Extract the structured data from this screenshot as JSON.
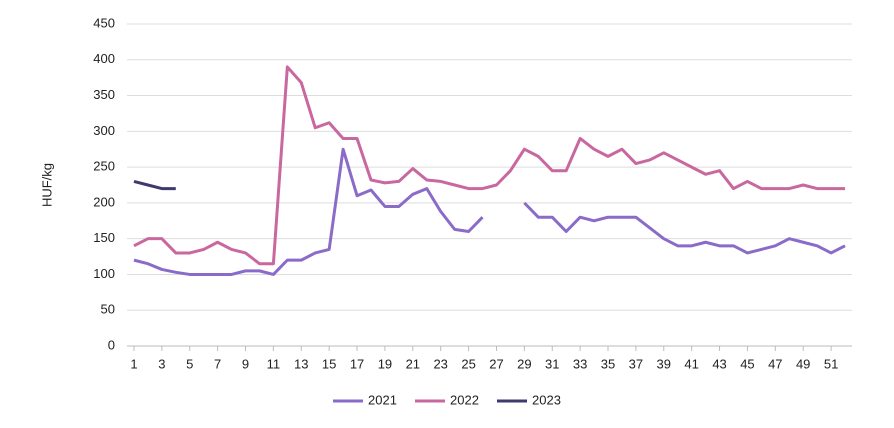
{
  "chart_data": {
    "type": "line",
    "y_label": "HUF/kg",
    "x": [
      1,
      2,
      3,
      4,
      5,
      6,
      7,
      8,
      9,
      10,
      11,
      12,
      13,
      14,
      15,
      16,
      17,
      18,
      19,
      20,
      21,
      22,
      23,
      24,
      25,
      26,
      27,
      28,
      29,
      30,
      31,
      32,
      33,
      34,
      35,
      36,
      37,
      38,
      39,
      40,
      41,
      42,
      43,
      44,
      45,
      46,
      47,
      48,
      49,
      50,
      51,
      52
    ],
    "series": [
      {
        "name": "2021",
        "color": "#8b6bc8",
        "values": [
          120,
          115,
          107,
          103,
          100,
          100,
          100,
          100,
          105,
          105,
          100,
          120,
          120,
          130,
          135,
          275,
          210,
          218,
          195,
          195,
          212,
          220,
          188,
          163,
          160,
          180,
          null,
          null,
          200,
          180,
          180,
          160,
          180,
          175,
          180,
          180,
          180,
          165,
          150,
          140,
          140,
          145,
          140,
          140,
          130,
          135,
          140,
          150,
          145,
          140,
          130,
          140
        ]
      },
      {
        "name": "2022",
        "color": "#c9679f",
        "values": [
          140,
          150,
          150,
          130,
          130,
          135,
          145,
          135,
          130,
          115,
          115,
          390,
          368,
          305,
          312,
          290,
          290,
          232,
          228,
          230,
          248,
          232,
          230,
          225,
          220,
          220,
          225,
          245,
          275,
          265,
          245,
          245,
          290,
          275,
          265,
          275,
          255,
          260,
          270,
          260,
          250,
          240,
          245,
          220,
          230,
          220,
          220,
          220,
          225,
          220,
          220,
          220
        ]
      },
      {
        "name": "2023",
        "color": "#3f3a6e",
        "values": [
          230,
          225,
          220,
          220,
          null,
          null,
          null,
          null,
          null,
          null,
          null,
          null,
          null,
          null,
          null,
          null,
          null,
          null,
          null,
          null,
          null,
          null,
          null,
          null,
          null,
          null,
          null,
          null,
          null,
          null,
          null,
          null,
          null,
          null,
          null,
          null,
          null,
          null,
          null,
          null,
          null,
          null,
          null,
          null,
          null,
          null,
          null,
          null,
          null,
          null,
          null,
          null
        ]
      }
    ],
    "xlim": [
      0.5,
      52.5
    ],
    "xticks": [
      1,
      3,
      5,
      7,
      9,
      11,
      13,
      15,
      17,
      19,
      21,
      23,
      25,
      27,
      29,
      31,
      33,
      35,
      37,
      39,
      41,
      43,
      45,
      47,
      49,
      51
    ],
    "ylim": [
      0,
      450
    ],
    "yticks": [
      0,
      50,
      100,
      150,
      200,
      250,
      300,
      350,
      400,
      450
    ],
    "grid": true,
    "legend": "bottom"
  }
}
